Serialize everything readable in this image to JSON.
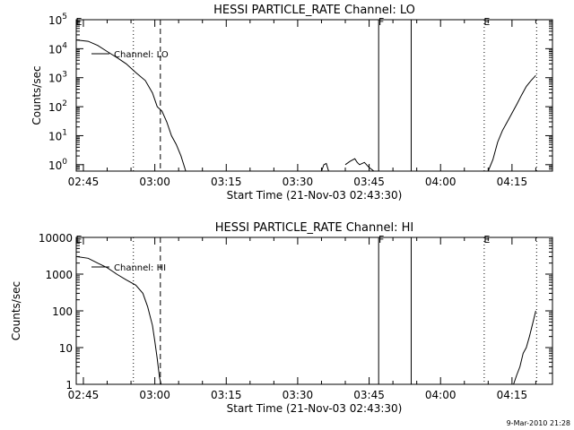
{
  "footer": {
    "timestamp": "9-Mar-2010 21:28"
  },
  "chart_data": [
    {
      "type": "line",
      "title": "HESSI PARTICLE_RATE Channel: LO",
      "xlabel": "Start Time (21-Nov-03 02:43:30)",
      "ylabel": "Counts/sec",
      "yscale": "log",
      "xlim": [
        "02:43:30",
        "04:23:30"
      ],
      "ylim": [
        0.6,
        100000
      ],
      "xticks": [
        "02:45",
        "03:00",
        "03:15",
        "03:30",
        "03:45",
        "04:00",
        "04:15"
      ],
      "yticks": [
        {
          "value": 1,
          "base": "10",
          "exp": "0"
        },
        {
          "value": 10,
          "base": "10",
          "exp": "1"
        },
        {
          "value": 100,
          "base": "10",
          "exp": "2"
        },
        {
          "value": 1000,
          "base": "10",
          "exp": "3"
        },
        {
          "value": 10000,
          "base": "10",
          "exp": "4"
        },
        {
          "value": 100000,
          "base": "10",
          "exp": "5"
        }
      ],
      "legend": [
        {
          "label": "Channel: LO",
          "placement": "upper-left"
        }
      ],
      "markers": [
        {
          "label": "E",
          "time": "02:43:30",
          "style": "dotted"
        },
        {
          "label": "",
          "time": "02:55:30",
          "style": "dotted"
        },
        {
          "label": "",
          "time": "03:01:10",
          "style": "dashed"
        },
        {
          "label": "F",
          "time": "03:47:00",
          "style": "solid"
        },
        {
          "label": "",
          "time": "03:53:50",
          "style": "solid"
        },
        {
          "label": "E",
          "time": "04:09:10",
          "style": "dotted"
        },
        {
          "label": "",
          "time": "04:20:10",
          "style": "dotted"
        }
      ],
      "series": [
        {
          "name": "Channel: LO",
          "segments": [
            [
              [
                "02:43:30",
                20000
              ],
              [
                "02:46:00",
                18000
              ],
              [
                "02:48:00",
                13000
              ],
              [
                "02:50:00",
                8000
              ],
              [
                "02:52:00",
                5000
              ],
              [
                "02:54:00",
                3000
              ],
              [
                "02:56:00",
                1500
              ],
              [
                "02:58:00",
                800
              ],
              [
                "02:59:30",
                300
              ],
              [
                "03:00:30",
                100
              ],
              [
                "03:01:30",
                70
              ],
              [
                "03:02:30",
                30
              ],
              [
                "03:03:30",
                10
              ],
              [
                "03:04:30",
                5
              ],
              [
                "03:05:30",
                2
              ],
              [
                "03:06:30",
                0.6
              ]
            ],
            [
              [
                "03:35:00",
                0.6
              ],
              [
                "03:35:30",
                1.0
              ],
              [
                "03:36:00",
                1.1
              ],
              [
                "03:36:30",
                0.6
              ]
            ],
            [
              [
                "03:40:00",
                1.0
              ],
              [
                "03:41:00",
                1.3
              ],
              [
                "03:42:00",
                1.6
              ],
              [
                "03:42:30",
                1.2
              ],
              [
                "03:43:00",
                1.0
              ],
              [
                "03:44:00",
                1.2
              ],
              [
                "03:45:00",
                0.8
              ],
              [
                "03:46:00",
                0.6
              ]
            ],
            [
              [
                "04:10:00",
                0.6
              ],
              [
                "04:11:00",
                1.5
              ],
              [
                "04:12:00",
                6
              ],
              [
                "04:13:00",
                15
              ],
              [
                "04:14:00",
                30
              ],
              [
                "04:15:00",
                60
              ],
              [
                "04:16:00",
                120
              ],
              [
                "04:17:00",
                250
              ],
              [
                "04:18:00",
                500
              ],
              [
                "04:19:00",
                800
              ],
              [
                "04:20:00",
                1200
              ]
            ]
          ]
        }
      ]
    },
    {
      "type": "line",
      "title": "HESSI PARTICLE_RATE Channel: HI",
      "xlabel": "Start Time (21-Nov-03 02:43:30)",
      "ylabel": "Counts/sec",
      "yscale": "log",
      "xlim": [
        "02:43:30",
        "04:23:30"
      ],
      "ylim": [
        1,
        10000
      ],
      "xticks": [
        "02:45",
        "03:00",
        "03:15",
        "03:30",
        "03:45",
        "04:00",
        "04:15"
      ],
      "yticks": [
        {
          "value": 1,
          "label": "1"
        },
        {
          "value": 10,
          "label": "10"
        },
        {
          "value": 100,
          "label": "100"
        },
        {
          "value": 1000,
          "label": "1000"
        },
        {
          "value": 10000,
          "label": "10000"
        }
      ],
      "legend": [
        {
          "label": "Channel: HI",
          "placement": "upper-left"
        }
      ],
      "markers": [
        {
          "label": "E",
          "time": "02:43:30",
          "style": "dotted"
        },
        {
          "label": "",
          "time": "02:55:30",
          "style": "dotted"
        },
        {
          "label": "",
          "time": "03:01:10",
          "style": "dashed"
        },
        {
          "label": "F",
          "time": "03:47:00",
          "style": "solid"
        },
        {
          "label": "",
          "time": "03:53:50",
          "style": "solid"
        },
        {
          "label": "E",
          "time": "04:09:10",
          "style": "dotted"
        },
        {
          "label": "",
          "time": "04:20:10",
          "style": "dotted"
        }
      ],
      "series": [
        {
          "name": "Channel: HI",
          "segments": [
            [
              [
                "02:43:30",
                3000
              ],
              [
                "02:46:00",
                2700
              ],
              [
                "02:48:00",
                2000
              ],
              [
                "02:50:00",
                1500
              ],
              [
                "02:52:00",
                1000
              ],
              [
                "02:54:00",
                700
              ],
              [
                "02:56:00",
                500
              ],
              [
                "02:57:30",
                300
              ],
              [
                "02:58:30",
                130
              ],
              [
                "02:59:30",
                40
              ],
              [
                "03:00:00",
                15
              ],
              [
                "03:00:30",
                5
              ],
              [
                "03:01:00",
                1.5
              ],
              [
                "03:01:20",
                1
              ]
            ],
            [
              [
                "04:15:20",
                1
              ],
              [
                "04:16:00",
                1.8
              ],
              [
                "04:16:40",
                3
              ],
              [
                "04:17:20",
                7
              ],
              [
                "04:18:00",
                10
              ],
              [
                "04:18:40",
                20
              ],
              [
                "04:19:20",
                45
              ],
              [
                "04:20:00",
                100
              ]
            ]
          ]
        }
      ]
    }
  ]
}
